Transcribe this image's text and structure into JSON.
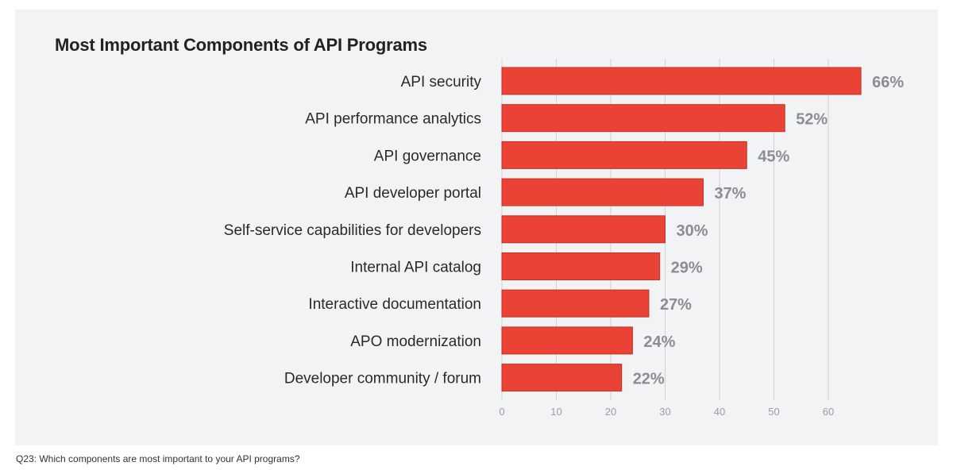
{
  "chart_data": {
    "type": "bar",
    "orientation": "horizontal",
    "title": "Most Important Components of API Programs",
    "categories": [
      "API security",
      "API performance analytics",
      "API governance",
      "API developer portal",
      "Self-service capabilities for developers",
      "Internal API catalog",
      "Interactive documentation",
      "APO modernization",
      "Developer community / forum"
    ],
    "values": [
      66,
      52,
      45,
      37,
      30,
      29,
      27,
      24,
      22
    ],
    "value_labels": [
      "66%",
      "52%",
      "45%",
      "37%",
      "30%",
      "29%",
      "27%",
      "24%",
      "22%"
    ],
    "xticks": [
      0,
      10,
      20,
      30,
      40,
      50,
      60
    ],
    "xtick_labels": [
      "0",
      "10",
      "20",
      "30",
      "40",
      "50",
      "60"
    ],
    "xlim": [
      0,
      66
    ],
    "xlabel": "",
    "ylabel": "",
    "grid": true,
    "legend": "none",
    "colors": {
      "bar": "#ea4335",
      "bar_outline": "#c23127",
      "gridline": "#d0d2d4",
      "tick_label": "#9a9ea3",
      "value_label": "#8a8e92",
      "category_label": "#2a2a2a",
      "panel": "#f2f3f4"
    }
  },
  "footnote": "Q23: Which components are most important to your API programs?"
}
